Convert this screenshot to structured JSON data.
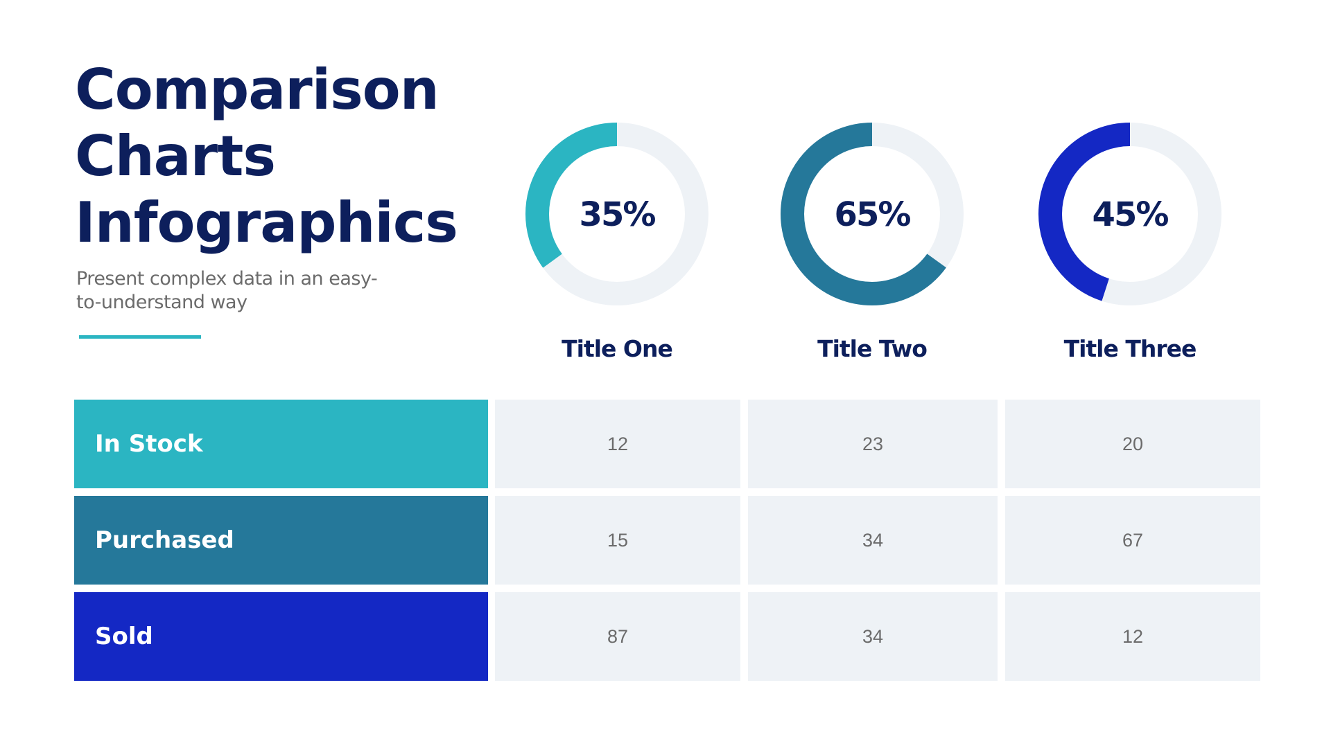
{
  "header": {
    "title_lines": [
      "Comparison",
      "Charts",
      "Infographics"
    ],
    "subtitle": "Present complex data in an easy-to-understand way"
  },
  "colors": {
    "title": "#0d1f5c",
    "in_stock": "#2bb5c2",
    "purchased": "#25789a",
    "sold": "#1428c4",
    "track": "#eef2f6",
    "cell_bg": "#eef2f6"
  },
  "chart_data": {
    "type": "pie",
    "variant": "donut",
    "series": [
      {
        "name": "Title One",
        "value": 35,
        "label": "35%",
        "color": "#2bb5c2"
      },
      {
        "name": "Title Two",
        "value": 65,
        "label": "65%",
        "color": "#25789a"
      },
      {
        "name": "Title Three",
        "value": 45,
        "label": "45%",
        "color": "#1428c4"
      }
    ]
  },
  "table": {
    "columns": [
      "Title One",
      "Title Two",
      "Title Three"
    ],
    "rows": [
      {
        "label": "In Stock",
        "values": [
          "12",
          "23",
          "20"
        ]
      },
      {
        "label": "Purchased",
        "values": [
          "15",
          "34",
          "67"
        ]
      },
      {
        "label": "Sold",
        "values": [
          "87",
          "34",
          "12"
        ]
      }
    ]
  }
}
